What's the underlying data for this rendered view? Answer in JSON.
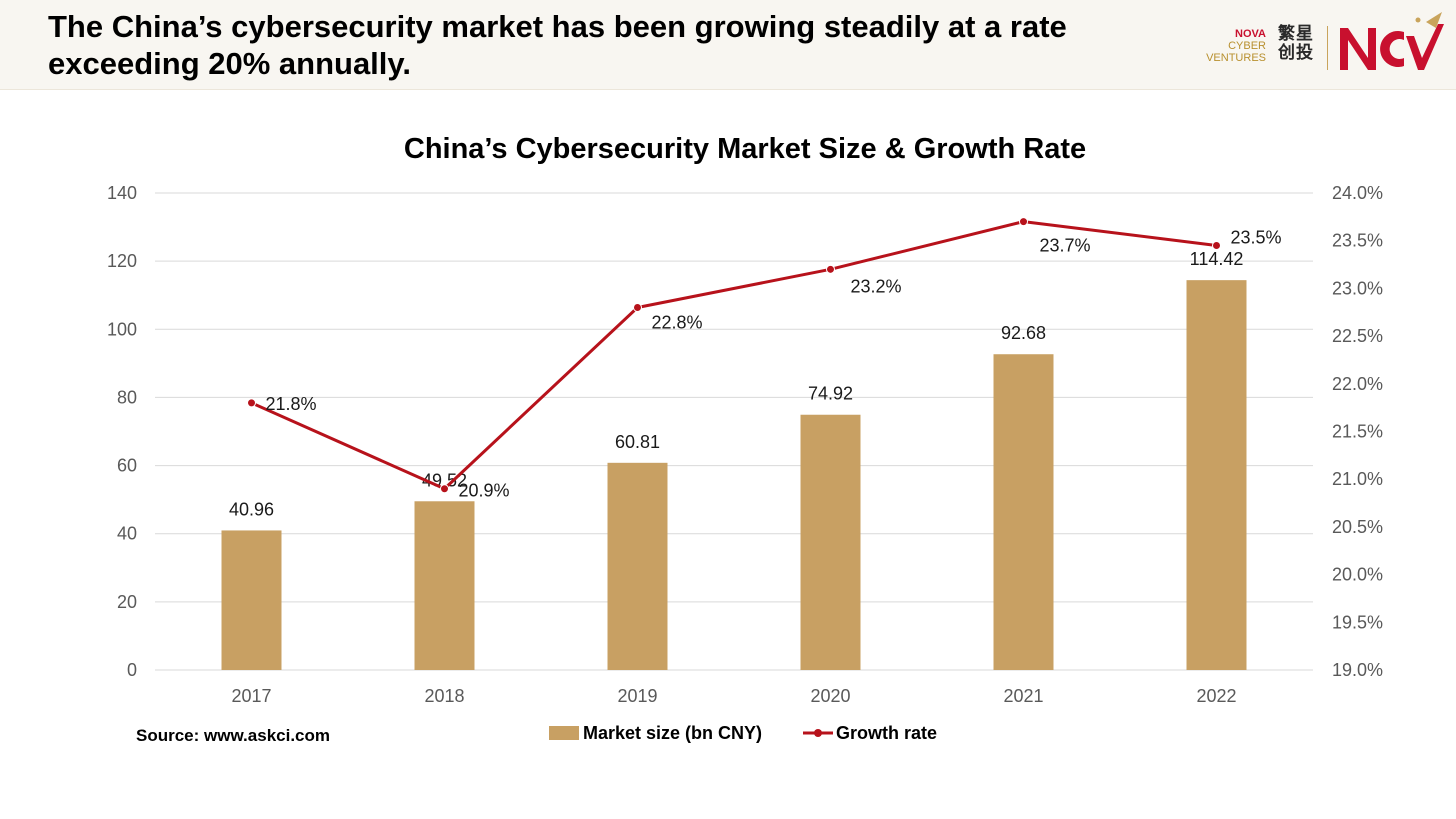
{
  "header": {
    "headline": "The China’s cybersecurity market has been growing steadily at a rate exceeding 20% annually."
  },
  "logo": {
    "name_line1": "NOVA",
    "name_line2": "CYBER",
    "name_line3": "VENTURES",
    "cn_line1": "繁星",
    "cn_line2": "创投",
    "brand_color": "#c8102e",
    "gold_color": "#c9a45c"
  },
  "source": "Source: www.askci.com",
  "chart_data": {
    "type": "bar",
    "title": "China’s Cybersecurity Market Size & Growth Rate",
    "categories": [
      "2017",
      "2018",
      "2019",
      "2020",
      "2021",
      "2022"
    ],
    "series": [
      {
        "name": "Market size (bn CNY)",
        "type": "bar",
        "axis": "left",
        "color": "#c8a063",
        "values": [
          40.96,
          49.52,
          60.81,
          74.92,
          92.68,
          114.42
        ],
        "labels": [
          "40.96",
          "49.52",
          "60.81",
          "74.92",
          "92.68",
          "114.42"
        ]
      },
      {
        "name": "Growth rate",
        "type": "line",
        "axis": "right",
        "color": "#b7121b",
        "values": [
          21.8,
          20.9,
          22.8,
          23.2,
          23.7,
          23.45
        ],
        "labels": [
          "21.8%",
          "20.9%",
          "22.8%",
          "23.2%",
          "23.7%",
          "23.5%"
        ]
      }
    ],
    "y_left": {
      "min": 0,
      "max": 140,
      "ticks": [
        0,
        20,
        40,
        60,
        80,
        100,
        120,
        140
      ],
      "tick_labels": [
        "0",
        "20",
        "40",
        "60",
        "80",
        "100",
        "120",
        "140"
      ]
    },
    "y_right": {
      "min": 19.0,
      "max": 24.0,
      "ticks": [
        19.0,
        19.5,
        20.0,
        20.5,
        21.0,
        21.5,
        22.0,
        22.5,
        23.0,
        23.5,
        24.0
      ],
      "tick_labels": [
        "19.0%",
        "19.5%",
        "20.0%",
        "20.5%",
        "21.0%",
        "21.5%",
        "22.0%",
        "22.5%",
        "23.0%",
        "23.5%",
        "24.0%"
      ]
    },
    "grid": true,
    "legend": "bottom"
  }
}
